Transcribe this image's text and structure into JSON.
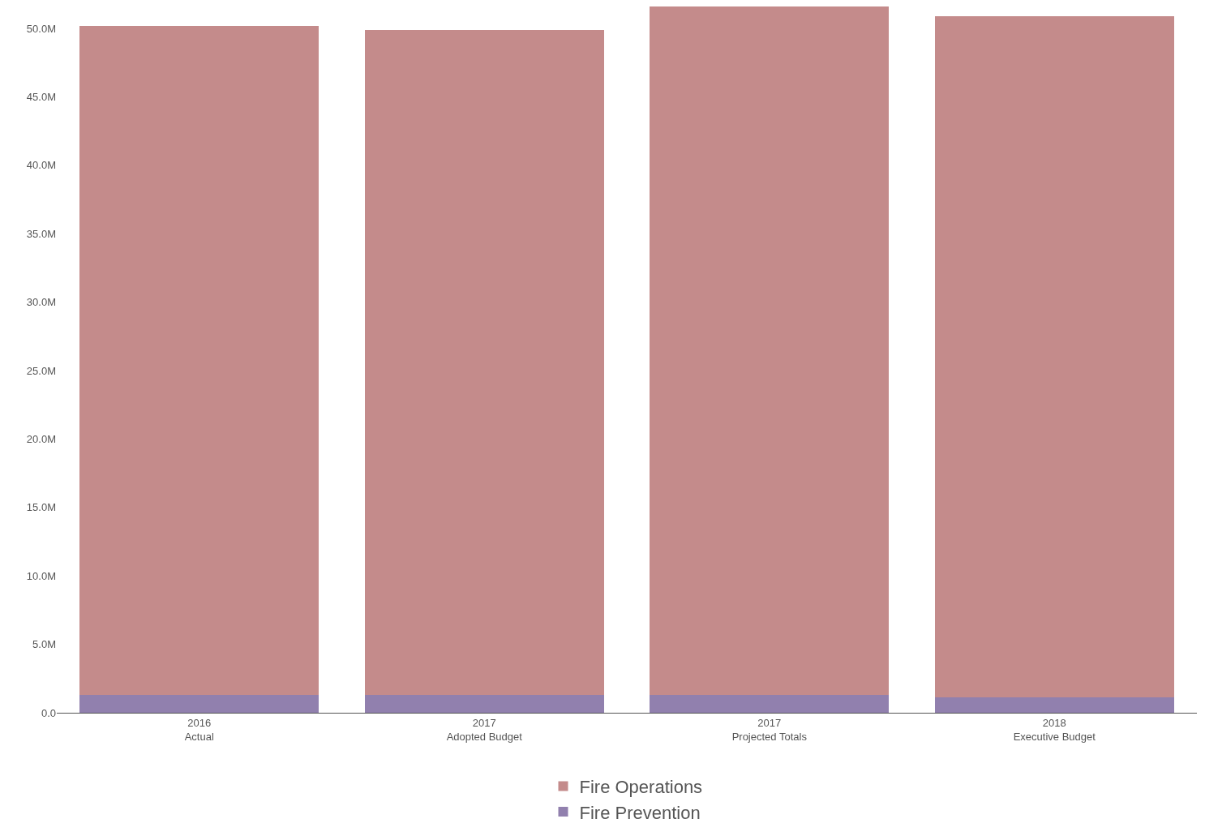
{
  "chart_data": {
    "type": "bar",
    "stacked": true,
    "categories": [
      "2016\nActual",
      "2017\nAdopted Budget",
      "2017\nProjected Totals",
      "2018\nExecutive Budget"
    ],
    "series": [
      {
        "name": "Fire Prevention",
        "color": "#9180ae",
        "values": [
          1.3,
          1.3,
          1.3,
          1.1
        ]
      },
      {
        "name": "Fire Operations",
        "color": "#c48b8b",
        "values": [
          48.9,
          48.6,
          50.3,
          49.8
        ]
      }
    ],
    "ylim": [
      0,
      51.6
    ],
    "yticks": [
      {
        "value": 0,
        "label": "0.0"
      },
      {
        "value": 5,
        "label": "5.0M"
      },
      {
        "value": 10,
        "label": "10.0M"
      },
      {
        "value": 15,
        "label": "15.0M"
      },
      {
        "value": 20,
        "label": "20.0M"
      },
      {
        "value": 25,
        "label": "25.0M"
      },
      {
        "value": 30,
        "label": "30.0M"
      },
      {
        "value": 35,
        "label": "35.0M"
      },
      {
        "value": 40,
        "label": "40.0M"
      },
      {
        "value": 45,
        "label": "45.0M"
      },
      {
        "value": 50,
        "label": "50.0M"
      }
    ],
    "legend": "bottom"
  }
}
